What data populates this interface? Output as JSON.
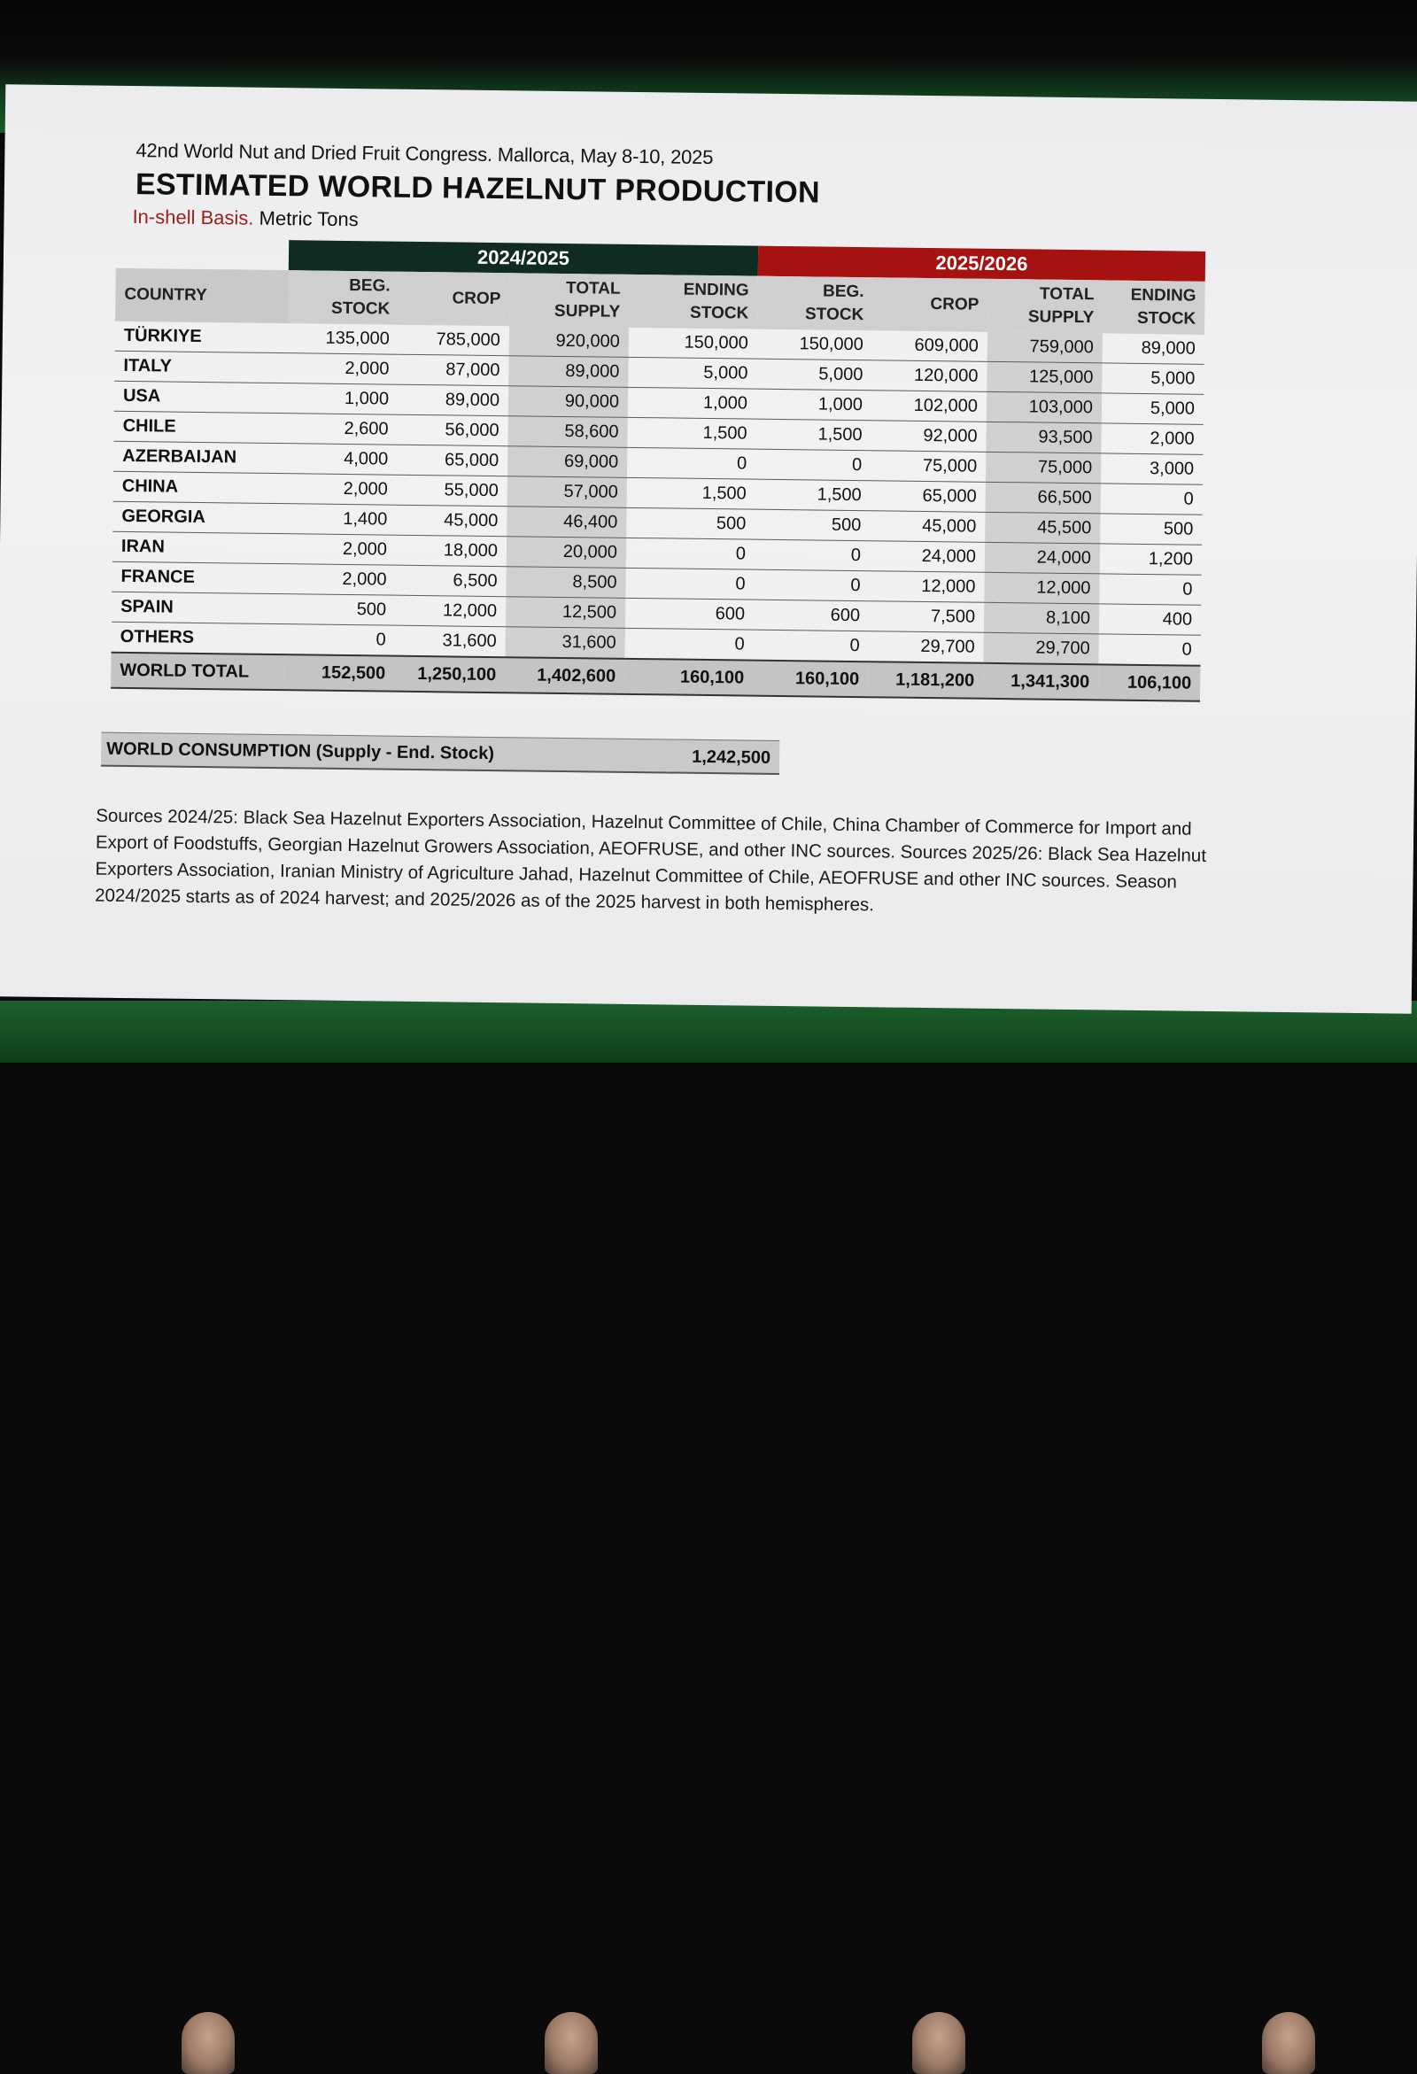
{
  "header": {
    "congress": "42nd World Nut and Dried Fruit Congress. Mallorca, May 8-10, 2025",
    "title": "ESTIMATED WORLD HAZELNUT PRODUCTION",
    "subtitle_red": "In-shell Basis.",
    "subtitle_rest": "Metric Tons"
  },
  "table": {
    "season1": "2024/2025",
    "season2": "2025/2026",
    "headers": {
      "country": "COUNTRY",
      "beg1": "BEG.",
      "beg2": "STOCK",
      "crop": "CROP",
      "total1": "TOTAL",
      "total2": "SUPPLY",
      "end1": "ENDING",
      "end2": "STOCK"
    },
    "rows": [
      {
        "country": "TÜRKIYE",
        "values": [
          "135,000",
          "785,000",
          "920,000",
          "150,000",
          "150,000",
          "609,000",
          "759,000",
          "89,000"
        ]
      },
      {
        "country": "ITALY",
        "values": [
          "2,000",
          "87,000",
          "89,000",
          "5,000",
          "5,000",
          "120,000",
          "125,000",
          "5,000"
        ]
      },
      {
        "country": "USA",
        "values": [
          "1,000",
          "89,000",
          "90,000",
          "1,000",
          "1,000",
          "102,000",
          "103,000",
          "5,000"
        ]
      },
      {
        "country": "CHILE",
        "values": [
          "2,600",
          "56,000",
          "58,600",
          "1,500",
          "1,500",
          "92,000",
          "93,500",
          "2,000"
        ]
      },
      {
        "country": "AZERBAIJAN",
        "values": [
          "4,000",
          "65,000",
          "69,000",
          "0",
          "0",
          "75,000",
          "75,000",
          "3,000"
        ]
      },
      {
        "country": "CHINA",
        "values": [
          "2,000",
          "55,000",
          "57,000",
          "1,500",
          "1,500",
          "65,000",
          "66,500",
          "0"
        ]
      },
      {
        "country": "GEORGIA",
        "values": [
          "1,400",
          "45,000",
          "46,400",
          "500",
          "500",
          "45,000",
          "45,500",
          "500"
        ]
      },
      {
        "country": "IRAN",
        "values": [
          "2,000",
          "18,000",
          "20,000",
          "0",
          "0",
          "24,000",
          "24,000",
          "1,200"
        ]
      },
      {
        "country": "FRANCE",
        "values": [
          "2,000",
          "6,500",
          "8,500",
          "0",
          "0",
          "12,000",
          "12,000",
          "0"
        ]
      },
      {
        "country": "SPAIN",
        "values": [
          "500",
          "12,000",
          "12,500",
          "600",
          "600",
          "7,500",
          "8,100",
          "400"
        ]
      },
      {
        "country": "OTHERS",
        "values": [
          "0",
          "31,600",
          "31,600",
          "0",
          "0",
          "29,700",
          "29,700",
          "0"
        ]
      }
    ],
    "total": {
      "country": "WORLD TOTAL",
      "values": [
        "152,500",
        "1,250,100",
        "1,402,600",
        "160,100",
        "160,100",
        "1,181,200",
        "1,341,300",
        "106,100"
      ]
    }
  },
  "consumption": {
    "label": "WORLD CONSUMPTION (Supply - End. Stock)",
    "value": "1,242,500"
  },
  "sources": "Sources 2024/25: Black Sea Hazelnut Exporters Association, Hazelnut Committee of Chile, China Chamber of Commerce for Import and Export of Foodstuffs, Georgian Hazelnut Growers Association, AEOFRUSE, and other INC sources. Sources 2025/26: Black Sea Hazelnut Exporters Association, Iranian Ministry of Agriculture Jahad, Hazelnut Committee of Chile, AEOFRUSE and other INC sources. Season 2024/2025 starts as of 2024 harvest; and 2025/2026 as of the 2025 harvest in both hemispheres."
}
